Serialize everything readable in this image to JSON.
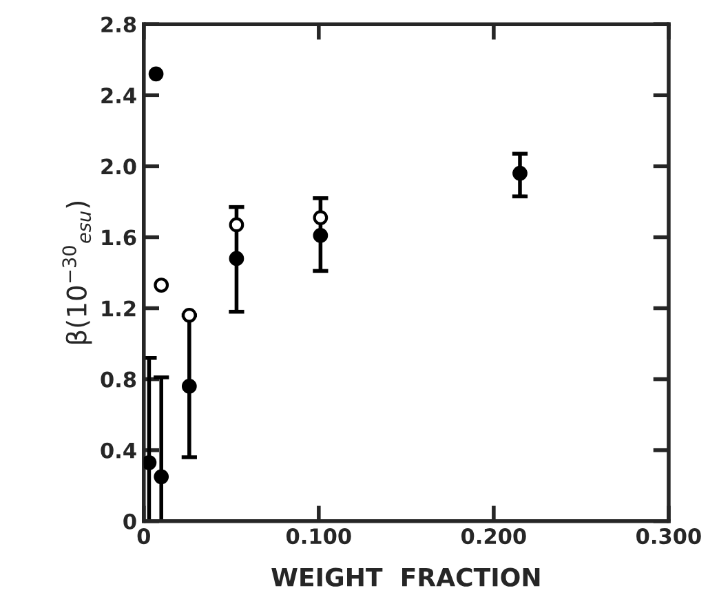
{
  "chart_data": {
    "type": "scatter",
    "xlabel": "WEIGHT  FRACTION",
    "ylabel": "β(10$^{−30}$$_{esu}$)",
    "xlim": [
      0,
      0.3
    ],
    "xticks": [
      {
        "value": 0,
        "label": "0"
      },
      {
        "value": 0.1,
        "label": "0.100"
      },
      {
        "value": 0.2,
        "label": "0.200"
      },
      {
        "value": 0.3,
        "label": "0.300"
      }
    ],
    "ylim": [
      0,
      2.8
    ],
    "yticks": [
      0,
      0.4,
      0.8,
      1.2,
      1.6,
      {
        "value": 2.0,
        "label": "2.0"
      },
      2.4,
      2.8
    ],
    "marker": "circle",
    "grid": false,
    "legend": false,
    "series": [
      {
        "color": "#000000",
        "x": [
          0.003,
          0.007,
          0.01,
          0.026,
          0.053,
          0.101,
          0.215
        ],
        "values": [
          0.33,
          2.52,
          0.25,
          0.76,
          1.48,
          1.61,
          1.96
        ],
        "errors": [
          [
            0,
            0.92
          ],
          null,
          [
            0,
            0.81
          ],
          [
            0.36,
            1.16
          ],
          [
            1.18,
            1.77
          ],
          [
            1.41,
            1.82
          ],
          [
            1.83,
            2.07
          ]
        ]
      },
      {
        "color": "#ffffff",
        "x": [
          0.01,
          0.026,
          0.053,
          0.101
        ],
        "values": [
          1.33,
          1.16,
          1.67,
          1.71
        ]
      }
    ]
  }
}
